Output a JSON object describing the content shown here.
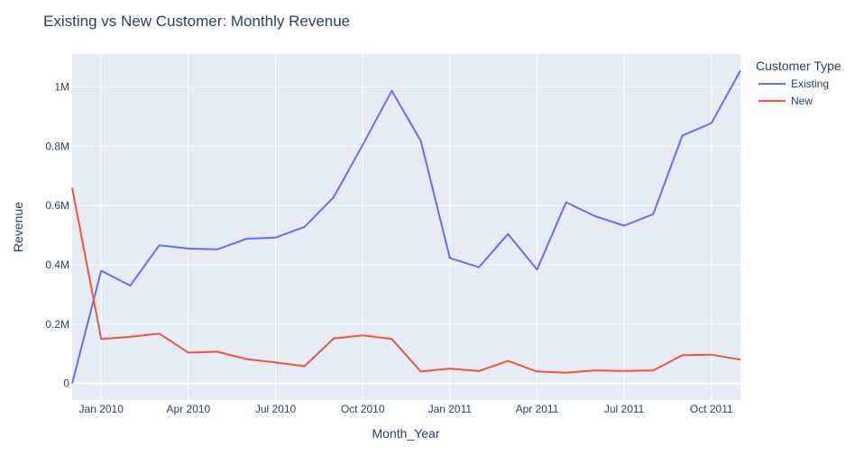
{
  "chart_data": {
    "type": "line",
    "title": "Existing vs New Customer: Monthly Revenue",
    "xlabel": "Month_Year",
    "ylabel": "Revenue",
    "x": [
      "2009-12",
      "2010-01",
      "2010-02",
      "2010-03",
      "2010-04",
      "2010-05",
      "2010-06",
      "2010-07",
      "2010-08",
      "2010-09",
      "2010-10",
      "2010-11",
      "2010-12",
      "2011-01",
      "2011-02",
      "2011-03",
      "2011-04",
      "2011-05",
      "2011-06",
      "2011-07",
      "2011-08",
      "2011-09",
      "2011-10",
      "2011-11"
    ],
    "series": [
      {
        "name": "Existing",
        "color": "#636efa",
        "values": [
          0,
          380000,
          330000,
          466000,
          455000,
          452000,
          488000,
          492000,
          528000,
          628000,
          805000,
          987000,
          818000,
          423000,
          392000,
          504000,
          384000,
          611000,
          564000,
          532000,
          571000,
          836000,
          878000,
          1055000
        ]
      },
      {
        "name": "New",
        "color": "#ef553b",
        "values": [
          660000,
          150000,
          157000,
          168000,
          104000,
          107000,
          82000,
          71000,
          58000,
          152000,
          162000,
          150000,
          40000,
          50000,
          42000,
          76000,
          40000,
          36000,
          44000,
          42000,
          44000,
          95000,
          97000,
          80000
        ]
      }
    ],
    "x_ticks": [
      {
        "pos": "2010-01",
        "label": "Jan 2010"
      },
      {
        "pos": "2010-04",
        "label": "Apr 2010"
      },
      {
        "pos": "2010-07",
        "label": "Jul 2010"
      },
      {
        "pos": "2010-10",
        "label": "Oct 2010"
      },
      {
        "pos": "2011-01",
        "label": "Jan 2011"
      },
      {
        "pos": "2011-04",
        "label": "Apr 2011"
      },
      {
        "pos": "2011-07",
        "label": "Jul 2011"
      },
      {
        "pos": "2011-10",
        "label": "Oct 2011"
      }
    ],
    "y_ticks": [
      {
        "value": 0,
        "label": "0"
      },
      {
        "value": 200000,
        "label": "0.2M"
      },
      {
        "value": 400000,
        "label": "0.4M"
      },
      {
        "value": 600000,
        "label": "0.6M"
      },
      {
        "value": 800000,
        "label": "0.8M"
      },
      {
        "value": 1000000,
        "label": "1M"
      }
    ],
    "ylim": [
      -56000,
      1111000
    ],
    "legend": {
      "title": "Customer Type",
      "position": "top-right"
    },
    "grid": true,
    "plot_background": "#e5ecf6"
  }
}
